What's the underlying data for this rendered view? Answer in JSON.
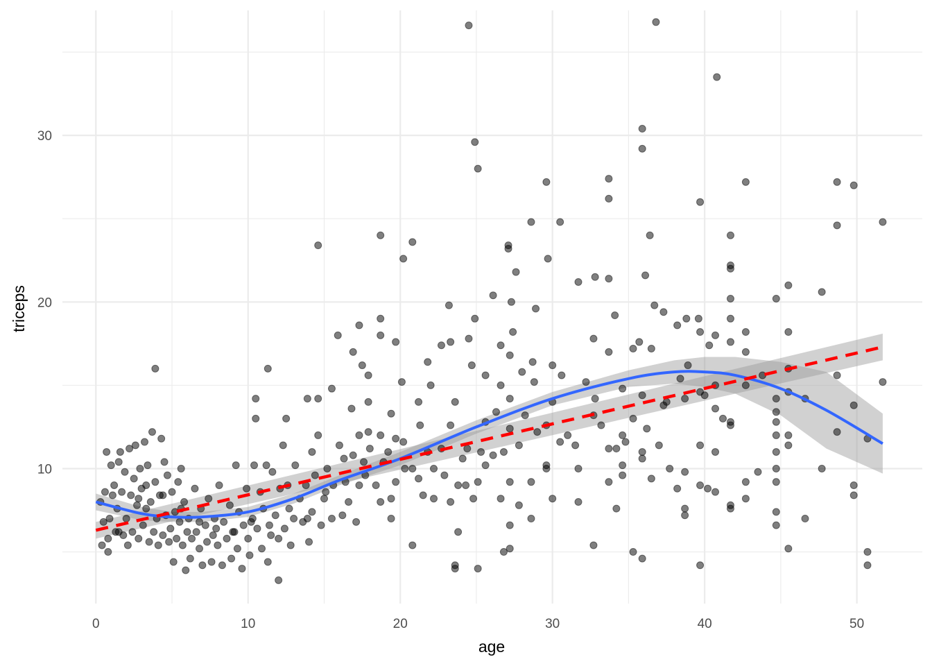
{
  "chart_data": {
    "type": "scatter",
    "title": "",
    "xlabel": "age",
    "ylabel": "triceps",
    "xlim": [
      -2.2,
      54.3
    ],
    "ylim": [
      1.9,
      37.5
    ],
    "xticks": [
      0,
      10,
      20,
      30,
      40,
      50
    ],
    "yticks": [
      10,
      20,
      30
    ],
    "grid": true,
    "colors": {
      "points": "#000000",
      "smooth": "#3366FF",
      "linear": "#FF0000",
      "ribbon": "#999999",
      "grid": "#EBEBEB"
    },
    "points": [
      [
        24.5,
        36.6
      ],
      [
        36.8,
        36.8
      ],
      [
        40.8,
        33.5
      ],
      [
        24.9,
        29.6
      ],
      [
        35.9,
        30.4
      ],
      [
        35.9,
        29.2
      ],
      [
        25.1,
        28
      ],
      [
        29.6,
        27.2
      ],
      [
        33.7,
        27.4
      ],
      [
        33.7,
        26.2
      ],
      [
        39.7,
        26
      ],
      [
        42.7,
        27.2
      ],
      [
        48.7,
        27.2
      ],
      [
        49.8,
        27
      ],
      [
        48.7,
        24.6
      ],
      [
        51.7,
        24.8
      ],
      [
        28.6,
        24.8
      ],
      [
        30.5,
        24.8
      ],
      [
        18.7,
        24
      ],
      [
        20.8,
        23.6
      ],
      [
        14.6,
        23.4
      ],
      [
        27.1,
        23.4
      ],
      [
        27.1,
        23.2
      ],
      [
        20.2,
        22.6
      ],
      [
        29.7,
        22.6
      ],
      [
        36.4,
        24
      ],
      [
        41.7,
        24
      ],
      [
        41.7,
        22.2
      ],
      [
        41.7,
        22
      ],
      [
        27.6,
        21.8
      ],
      [
        31.7,
        21.2
      ],
      [
        32.8,
        21.5
      ],
      [
        33.7,
        21.4
      ],
      [
        36.1,
        21.6
      ],
      [
        45.5,
        21
      ],
      [
        47.7,
        20.6
      ],
      [
        44.7,
        20.2
      ],
      [
        41.7,
        20.2
      ],
      [
        41.7,
        19
      ],
      [
        26.1,
        20.4
      ],
      [
        27.3,
        20
      ],
      [
        23.2,
        19.8
      ],
      [
        36.7,
        19.8
      ],
      [
        37.3,
        19.4
      ],
      [
        28.9,
        19.6
      ],
      [
        34.1,
        19.2
      ],
      [
        39.6,
        19
      ],
      [
        24.9,
        19
      ],
      [
        18.7,
        19
      ],
      [
        17.3,
        18.6
      ],
      [
        15.9,
        18
      ],
      [
        18.7,
        18
      ],
      [
        19.7,
        17.6
      ],
      [
        21.8,
        16.4
      ],
      [
        22.7,
        17.4
      ],
      [
        23.3,
        17.6
      ],
      [
        24.5,
        17.8
      ],
      [
        27.4,
        18.2
      ],
      [
        30,
        16.2
      ],
      [
        32.7,
        17.8
      ],
      [
        35.7,
        17.6
      ],
      [
        38.2,
        18.6
      ],
      [
        39.7,
        18.2
      ],
      [
        40.7,
        18
      ],
      [
        42.7,
        18.2
      ],
      [
        45.5,
        18.2
      ],
      [
        41.7,
        17.6
      ],
      [
        38.8,
        19
      ],
      [
        16.9,
        17
      ],
      [
        17.9,
        15.6
      ],
      [
        17.5,
        16.2
      ],
      [
        15.5,
        14.8
      ],
      [
        14.6,
        14.2
      ],
      [
        13.9,
        14.2
      ],
      [
        10.5,
        14.2
      ],
      [
        11.3,
        16
      ],
      [
        3.9,
        16
      ],
      [
        12.5,
        13
      ],
      [
        10.5,
        13
      ],
      [
        20.1,
        15.2
      ],
      [
        22,
        15
      ],
      [
        24.7,
        16.2
      ],
      [
        26.6,
        17.4
      ],
      [
        27.2,
        16.8
      ],
      [
        28.7,
        16.4
      ],
      [
        28.8,
        15.2
      ],
      [
        25.6,
        15.6
      ],
      [
        33.7,
        17
      ],
      [
        36.5,
        17.2
      ],
      [
        35.3,
        17.2
      ],
      [
        40.3,
        17.4
      ],
      [
        42.7,
        17
      ],
      [
        38.4,
        15.4
      ],
      [
        35.9,
        14.4
      ],
      [
        32.8,
        14.2
      ],
      [
        30,
        14
      ],
      [
        34.6,
        14.8
      ],
      [
        27.2,
        14.2
      ],
      [
        26.6,
        15
      ],
      [
        23.6,
        14
      ],
      [
        21.2,
        14
      ],
      [
        19.4,
        13.3
      ],
      [
        17.9,
        14
      ],
      [
        16.8,
        13.6
      ],
      [
        45.5,
        16
      ],
      [
        44.7,
        14.2
      ],
      [
        44.7,
        13.4
      ],
      [
        44.7,
        12.8
      ],
      [
        44.7,
        12
      ],
      [
        44.7,
        11
      ],
      [
        44.7,
        10
      ],
      [
        44.7,
        9.2
      ],
      [
        44.7,
        7.4
      ],
      [
        44.7,
        6.6
      ],
      [
        45.5,
        14.6
      ],
      [
        45.5,
        12
      ],
      [
        45.5,
        11.4
      ],
      [
        45.5,
        5.2
      ],
      [
        46.6,
        14.2
      ],
      [
        46.6,
        7
      ],
      [
        47.7,
        10
      ],
      [
        48.7,
        15.6
      ],
      [
        48.7,
        12.2
      ],
      [
        49.8,
        13.8
      ],
      [
        49.8,
        9
      ],
      [
        49.8,
        8.4
      ],
      [
        50.7,
        11.8
      ],
      [
        50.7,
        5
      ],
      [
        50.7,
        4.2
      ],
      [
        51.7,
        15.2
      ],
      [
        42.7,
        15
      ],
      [
        42.7,
        9.2
      ],
      [
        42.7,
        8.2
      ],
      [
        41.7,
        12.8
      ],
      [
        41.7,
        12.6
      ],
      [
        41.7,
        7.8
      ],
      [
        41.7,
        7.6
      ],
      [
        40.7,
        15
      ],
      [
        40.7,
        13.6
      ],
      [
        40.7,
        11
      ],
      [
        40.7,
        8.6
      ],
      [
        40.2,
        8.8
      ],
      [
        39.7,
        14.6
      ],
      [
        39.7,
        11.4
      ],
      [
        39.7,
        9
      ],
      [
        39.7,
        4.2
      ],
      [
        38.7,
        14.2
      ],
      [
        38.7,
        9.8
      ],
      [
        38.7,
        7.6
      ],
      [
        38.7,
        7.2
      ],
      [
        38.2,
        8.8
      ],
      [
        37.7,
        10
      ],
      [
        37.3,
        13.8
      ],
      [
        37,
        11.4
      ],
      [
        36.5,
        9.4
      ],
      [
        35.9,
        11
      ],
      [
        35.9,
        10.6
      ],
      [
        35.3,
        13
      ],
      [
        35.3,
        5
      ],
      [
        35.9,
        4.6
      ],
      [
        34.6,
        12
      ],
      [
        34.6,
        10.2
      ],
      [
        34.6,
        9.6
      ],
      [
        34.2,
        11.2
      ],
      [
        34.2,
        7.6
      ],
      [
        33.7,
        11.2
      ],
      [
        33.7,
        9.2
      ],
      [
        32.7,
        13.2
      ],
      [
        32.7,
        5.4
      ],
      [
        31.7,
        10
      ],
      [
        31.7,
        8
      ],
      [
        31,
        12
      ],
      [
        30.5,
        11.6
      ],
      [
        30,
        8.2
      ],
      [
        29.6,
        12.6
      ],
      [
        29.6,
        10.2
      ],
      [
        29.6,
        10
      ],
      [
        29,
        12.2
      ],
      [
        28.6,
        9.2
      ],
      [
        28.6,
        7
      ],
      [
        28,
        15.8
      ],
      [
        27.8,
        11.4
      ],
      [
        27.8,
        7.8
      ],
      [
        27.2,
        12.4
      ],
      [
        27.2,
        9.2
      ],
      [
        27.2,
        6.6
      ],
      [
        27.2,
        5.2
      ],
      [
        26.8,
        11
      ],
      [
        26.8,
        5
      ],
      [
        26.6,
        8.2
      ],
      [
        26.1,
        10.8
      ],
      [
        25.6,
        12.8
      ],
      [
        25.6,
        10.2
      ],
      [
        25.1,
        9.2
      ],
      [
        25.1,
        4
      ],
      [
        24.8,
        8.2
      ],
      [
        24.4,
        11.2
      ],
      [
        24.3,
        9
      ],
      [
        23.8,
        9
      ],
      [
        23.8,
        6.2
      ],
      [
        23.6,
        4.2
      ],
      [
        23.6,
        4
      ],
      [
        23.3,
        12.6
      ],
      [
        23.3,
        8
      ],
      [
        22.7,
        11.2
      ],
      [
        22.2,
        10
      ],
      [
        22.2,
        8.2
      ],
      [
        21.8,
        11
      ],
      [
        21.3,
        12.6
      ],
      [
        21.2,
        9.4
      ],
      [
        20.8,
        5.4
      ],
      [
        20.8,
        10
      ],
      [
        20.2,
        11.6
      ],
      [
        19.7,
        11.8
      ],
      [
        19.7,
        9.2
      ],
      [
        19.4,
        8.2
      ],
      [
        19.4,
        7
      ],
      [
        19.2,
        11
      ],
      [
        18.7,
        12
      ],
      [
        18.7,
        8
      ],
      [
        18.4,
        9
      ],
      [
        18,
        11.2
      ],
      [
        17.9,
        12.2
      ],
      [
        17.6,
        10.4
      ],
      [
        17.3,
        12
      ],
      [
        17.3,
        9
      ],
      [
        17.1,
        6.8
      ],
      [
        16.9,
        10.8
      ],
      [
        16.6,
        8
      ],
      [
        16.3,
        10.6
      ],
      [
        16.2,
        7.2
      ],
      [
        16,
        11.4
      ],
      [
        15.6,
        9
      ],
      [
        15.5,
        7
      ],
      [
        15.2,
        10
      ],
      [
        15,
        8.2
      ],
      [
        14.8,
        6.6
      ],
      [
        14.6,
        12
      ],
      [
        14.4,
        9.6
      ],
      [
        14.2,
        11
      ],
      [
        14.2,
        7.4
      ],
      [
        14,
        5.6
      ],
      [
        13.8,
        9
      ],
      [
        13.6,
        6.8
      ],
      [
        13.4,
        8.2
      ],
      [
        13.1,
        10.2
      ],
      [
        13,
        7
      ],
      [
        12.8,
        5.4
      ],
      [
        12.6,
        9
      ],
      [
        12.4,
        6.4
      ],
      [
        12.3,
        11.4
      ],
      [
        12.1,
        8.8
      ],
      [
        12,
        5.8
      ],
      [
        12,
        3.3
      ],
      [
        11.8,
        7.2
      ],
      [
        11.6,
        9.8
      ],
      [
        11.5,
        6
      ],
      [
        11.3,
        4.4
      ],
      [
        11.2,
        10.2
      ],
      [
        11,
        7.6
      ],
      [
        10.9,
        5.2
      ],
      [
        10.8,
        8.6
      ],
      [
        10.6,
        6.4
      ],
      [
        10.4,
        10.2
      ],
      [
        10.3,
        7
      ],
      [
        10.1,
        4.8
      ],
      [
        10,
        5.8
      ],
      [
        9.9,
        8.8
      ],
      [
        9.7,
        6.6
      ],
      [
        9.6,
        4
      ],
      [
        9.4,
        7.4
      ],
      [
        9.3,
        5.2
      ],
      [
        9.2,
        10.2
      ],
      [
        9.1,
        6.2
      ],
      [
        8.9,
        4.6
      ],
      [
        8.8,
        7.8
      ],
      [
        8.6,
        5.8
      ],
      [
        8.4,
        6.8
      ],
      [
        8.3,
        4.2
      ],
      [
        8.1,
        9
      ],
      [
        8,
        5.4
      ],
      [
        7.8,
        7
      ],
      [
        7.7,
        6
      ],
      [
        7.6,
        4.4
      ],
      [
        7.4,
        8.2
      ],
      [
        7.3,
        5.6
      ],
      [
        7.2,
        6.6
      ],
      [
        7,
        4.2
      ],
      [
        6.9,
        7.6
      ],
      [
        6.8,
        5.2
      ],
      [
        6.6,
        6.2
      ],
      [
        6.5,
        8.8
      ],
      [
        6.3,
        5.8
      ],
      [
        6.2,
        4.6
      ],
      [
        6.1,
        7
      ],
      [
        6,
        6.2
      ],
      [
        5.9,
        3.9
      ],
      [
        5.8,
        8
      ],
      [
        5.7,
        5.4
      ],
      [
        5.6,
        10
      ],
      [
        5.5,
        6.8
      ],
      [
        5.4,
        9.2
      ],
      [
        5.3,
        5.8
      ],
      [
        5.2,
        7.4
      ],
      [
        5.1,
        4.4
      ],
      [
        5,
        8.6
      ],
      [
        4.9,
        6.4
      ],
      [
        4.8,
        5.6
      ],
      [
        4.7,
        9.6
      ],
      [
        4.6,
        7.2
      ],
      [
        4.5,
        10.4
      ],
      [
        4.4,
        6
      ],
      [
        4.3,
        11.8
      ],
      [
        4.2,
        8.4
      ],
      [
        4.1,
        5.4
      ],
      [
        4,
        7
      ],
      [
        3.9,
        9.2
      ],
      [
        3.8,
        6.2
      ],
      [
        3.7,
        12.2
      ],
      [
        3.6,
        8
      ],
      [
        3.5,
        5.6
      ],
      [
        3.4,
        10.2
      ],
      [
        3.3,
        7.6
      ],
      [
        3.2,
        11.6
      ],
      [
        3.1,
        6.6
      ],
      [
        3,
        8.8
      ],
      [
        2.9,
        10
      ],
      [
        2.8,
        5.8
      ],
      [
        2.7,
        7.8
      ],
      [
        2.6,
        11.4
      ],
      [
        2.5,
        9.4
      ],
      [
        2.4,
        6.2
      ],
      [
        2.3,
        8.4
      ],
      [
        2.2,
        11.2
      ],
      [
        2.1,
        5.4
      ],
      [
        2,
        7
      ],
      [
        1.9,
        9.8
      ],
      [
        1.8,
        6
      ],
      [
        1.7,
        8.6
      ],
      [
        1.6,
        11
      ],
      [
        1.5,
        10.4
      ],
      [
        1.4,
        7.6
      ],
      [
        1.3,
        6.2
      ],
      [
        1.2,
        9
      ],
      [
        1.1,
        8.4
      ],
      [
        1,
        10.2
      ],
      [
        0.9,
        7
      ],
      [
        0.8,
        5.8
      ],
      [
        0.7,
        11
      ],
      [
        0.6,
        8.6
      ],
      [
        0.5,
        6.8
      ],
      [
        0.4,
        5.4
      ],
      [
        0.3,
        8
      ],
      [
        0.8,
        5
      ],
      [
        1.5,
        6.2
      ],
      [
        2.8,
        8.2
      ],
      [
        3.3,
        9
      ],
      [
        4.4,
        8.4
      ],
      [
        5.6,
        7.6
      ],
      [
        6.8,
        6.8
      ],
      [
        7.9,
        6.4
      ],
      [
        9,
        6.2
      ],
      [
        10.2,
        6.8
      ],
      [
        11.4,
        6.6
      ],
      [
        12.7,
        7.6
      ],
      [
        13.9,
        7
      ],
      [
        15.1,
        8.6
      ],
      [
        16.4,
        9.2
      ],
      [
        17.7,
        9.6
      ],
      [
        18.9,
        10.4
      ],
      [
        20.3,
        10
      ],
      [
        21.5,
        8.4
      ],
      [
        22.9,
        9.6
      ],
      [
        24.1,
        10.6
      ],
      [
        25.3,
        11
      ],
      [
        26.3,
        13.4
      ],
      [
        28.2,
        13.2
      ],
      [
        30.6,
        15.6
      ],
      [
        31.5,
        11.4
      ],
      [
        32.2,
        15.2
      ],
      [
        33.2,
        12.6
      ],
      [
        34.8,
        11.6
      ],
      [
        36.2,
        12.4
      ],
      [
        37.5,
        14
      ],
      [
        38.9,
        16.2
      ],
      [
        40,
        14.4
      ],
      [
        41.2,
        13
      ],
      [
        43.5,
        9.8
      ],
      [
        43.8,
        15.6
      ]
    ],
    "smooth_fit": {
      "method": "loess",
      "x": [
        0,
        3,
        5,
        7,
        10,
        13,
        16,
        20,
        25,
        30,
        35,
        38,
        40,
        42,
        45,
        48,
        51.7
      ],
      "y": [
        8.0,
        7.3,
        7.1,
        7.1,
        7.4,
        8.2,
        9.3,
        10.6,
        12.5,
        14.2,
        15.4,
        15.8,
        15.8,
        15.6,
        14.8,
        13.5,
        11.5
      ],
      "lo": [
        7.5,
        6.9,
        6.8,
        6.8,
        7.1,
        7.9,
        9.0,
        10.2,
        12.1,
        13.8,
        14.9,
        15.1,
        14.9,
        14.5,
        13.2,
        11.2,
        9.7
      ],
      "hi": [
        8.5,
        7.7,
        7.4,
        7.4,
        7.7,
        8.5,
        9.6,
        11.0,
        12.9,
        14.6,
        15.9,
        16.5,
        16.7,
        16.7,
        16.4,
        15.8,
        13.3
      ]
    },
    "linear_fit": {
      "method": "lm",
      "x": [
        0,
        51.7
      ],
      "y": [
        6.3,
        17.3
      ],
      "lo": [
        5.8,
        16.5
      ],
      "hi": [
        6.8,
        18.1
      ]
    }
  }
}
